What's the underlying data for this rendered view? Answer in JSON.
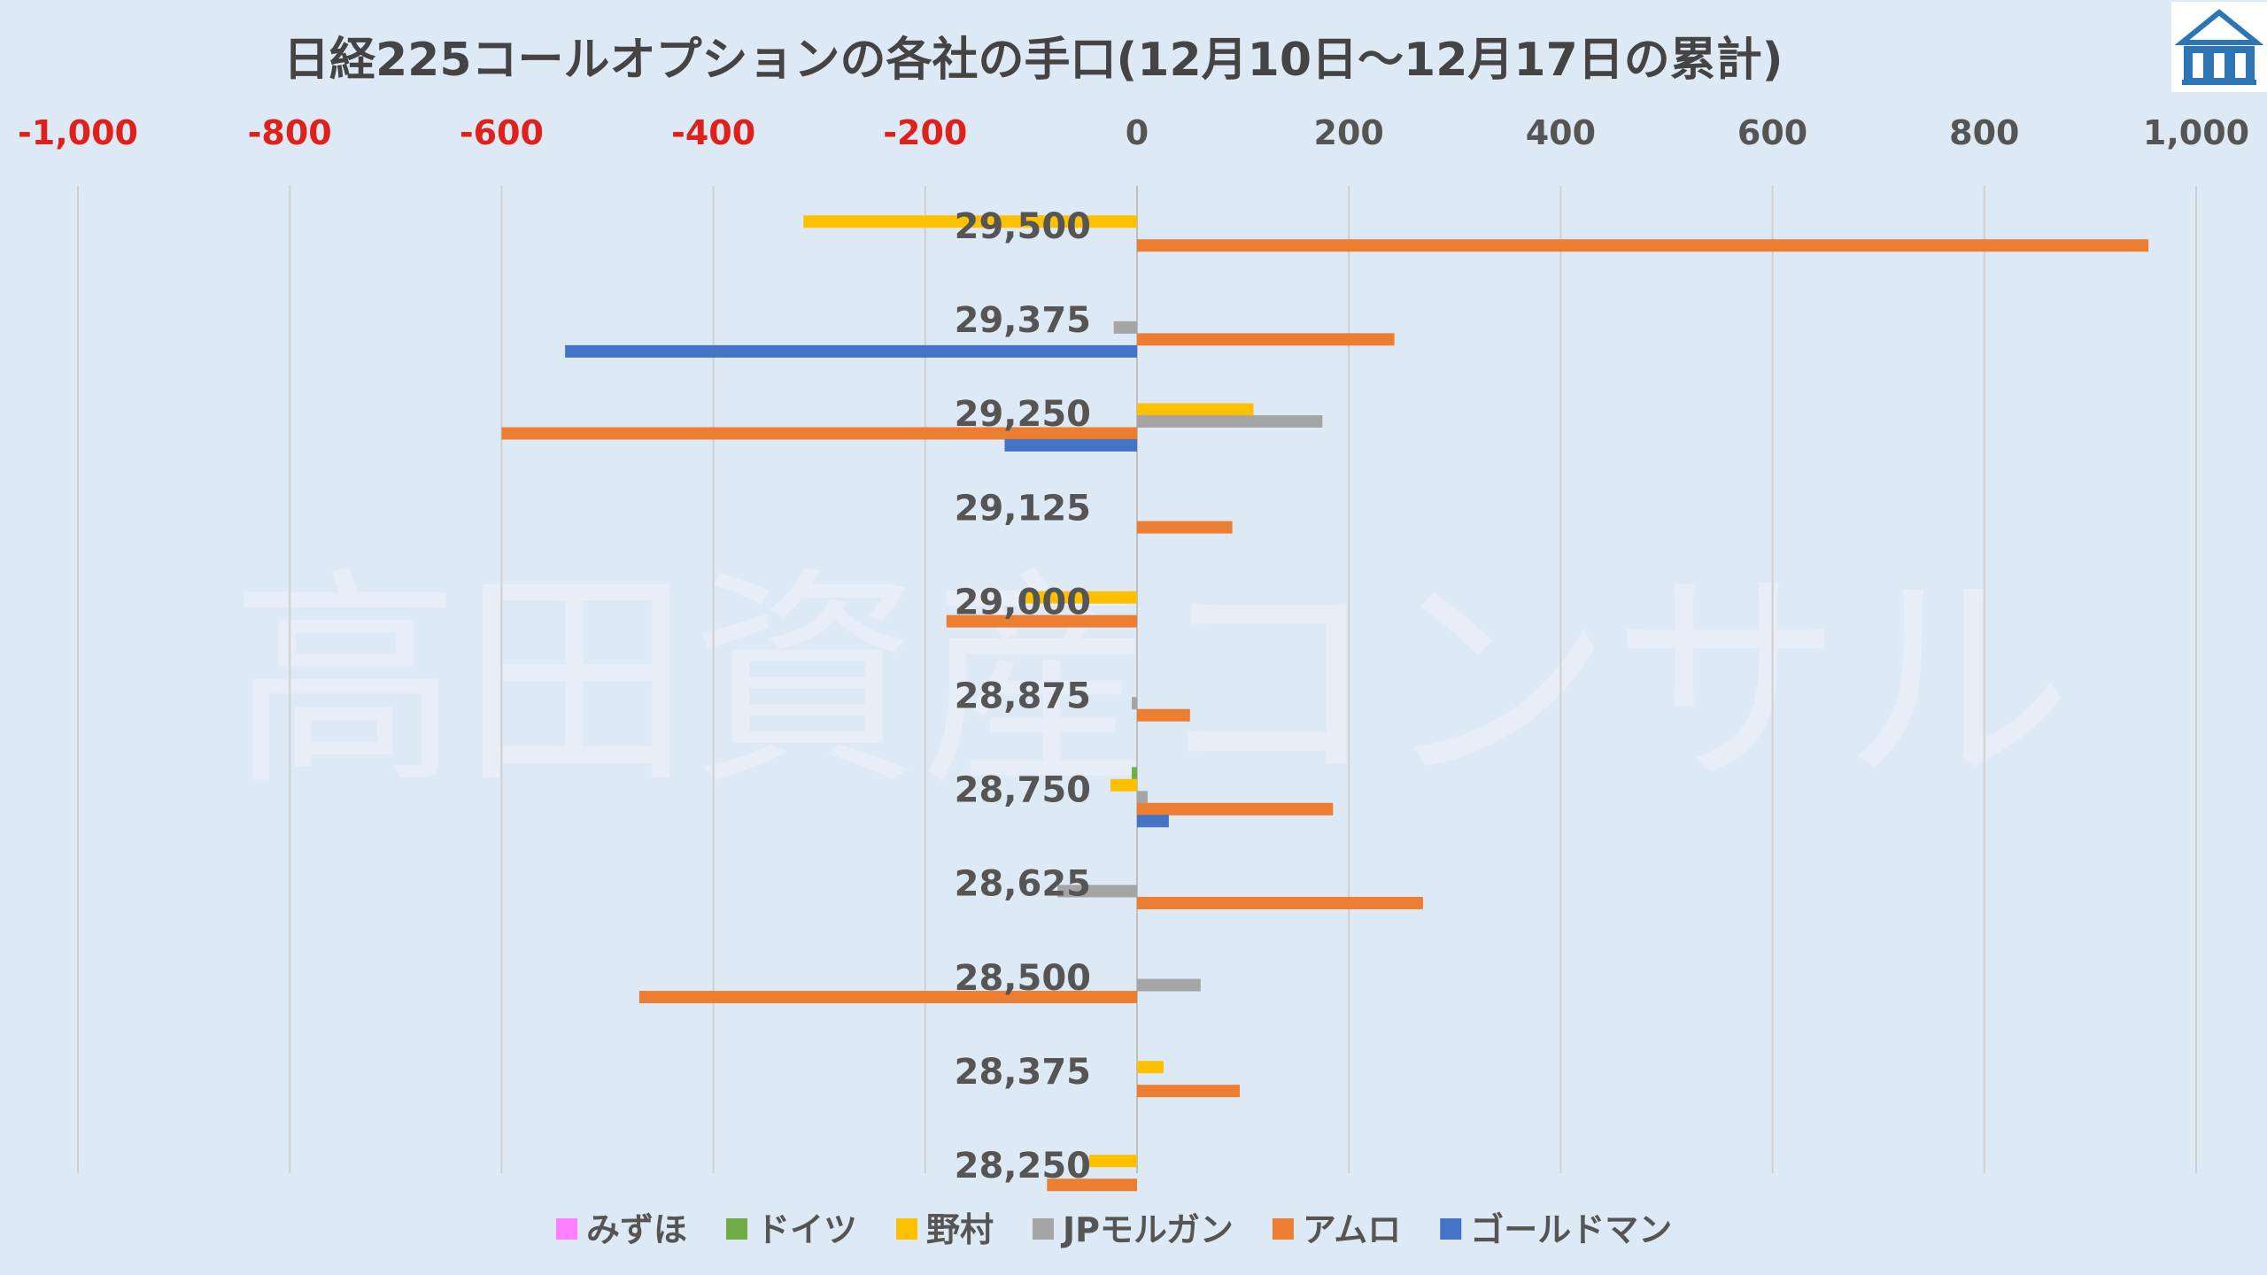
{
  "brand": {
    "logo_icon": "building-roof-logo-icon"
  },
  "watermark_text": "高田資産コンサル",
  "chart_data": {
    "type": "bar",
    "orientation": "horizontal",
    "title": "日経225コールオプションの各社の手口(12月10日～12月17日の累計)",
    "xlim": [
      -1000,
      1000
    ],
    "x_ticks": [
      -1000,
      -800,
      -600,
      -400,
      -200,
      0,
      200,
      400,
      600,
      800,
      1000
    ],
    "x_tick_labels": [
      "-1,000",
      "-800",
      "-600",
      "-400",
      "-200",
      "0",
      "200",
      "400",
      "600",
      "800",
      "1,000"
    ],
    "negative_tick_color": "#e0201b",
    "positive_tick_color": "#555555",
    "grid": "vertical",
    "legend_position": "bottom",
    "categories": [
      "29,500",
      "29,375",
      "29,250",
      "29,125",
      "29,000",
      "28,875",
      "28,750",
      "28,625",
      "28,500",
      "28,375",
      "28,250"
    ],
    "series": [
      {
        "name": "みずほ",
        "color": "#ff80ff",
        "values": [
          0,
          0,
          0,
          0,
          0,
          0,
          0,
          0,
          0,
          0,
          0
        ]
      },
      {
        "name": "ドイツ",
        "color": "#70ad47",
        "values": [
          0,
          0,
          0,
          0,
          0,
          0,
          -5,
          0,
          0,
          0,
          0
        ]
      },
      {
        "name": "野村",
        "color": "#ffc000",
        "values": [
          -315,
          0,
          110,
          0,
          -110,
          0,
          -25,
          0,
          0,
          25,
          -45
        ]
      },
      {
        "name": "JPモルガン",
        "color": "#a5a5a5",
        "values": [
          0,
          -22,
          175,
          0,
          0,
          -5,
          10,
          -75,
          60,
          0,
          0
        ]
      },
      {
        "name": "アムロ",
        "color": "#ed7d31",
        "values": [
          955,
          243,
          -600,
          90,
          -180,
          50,
          185,
          270,
          -470,
          97,
          -85
        ]
      },
      {
        "name": "ゴールドマン",
        "color": "#4472c4",
        "values": [
          0,
          -540,
          -125,
          0,
          0,
          0,
          30,
          0,
          0,
          0,
          0
        ]
      }
    ]
  }
}
